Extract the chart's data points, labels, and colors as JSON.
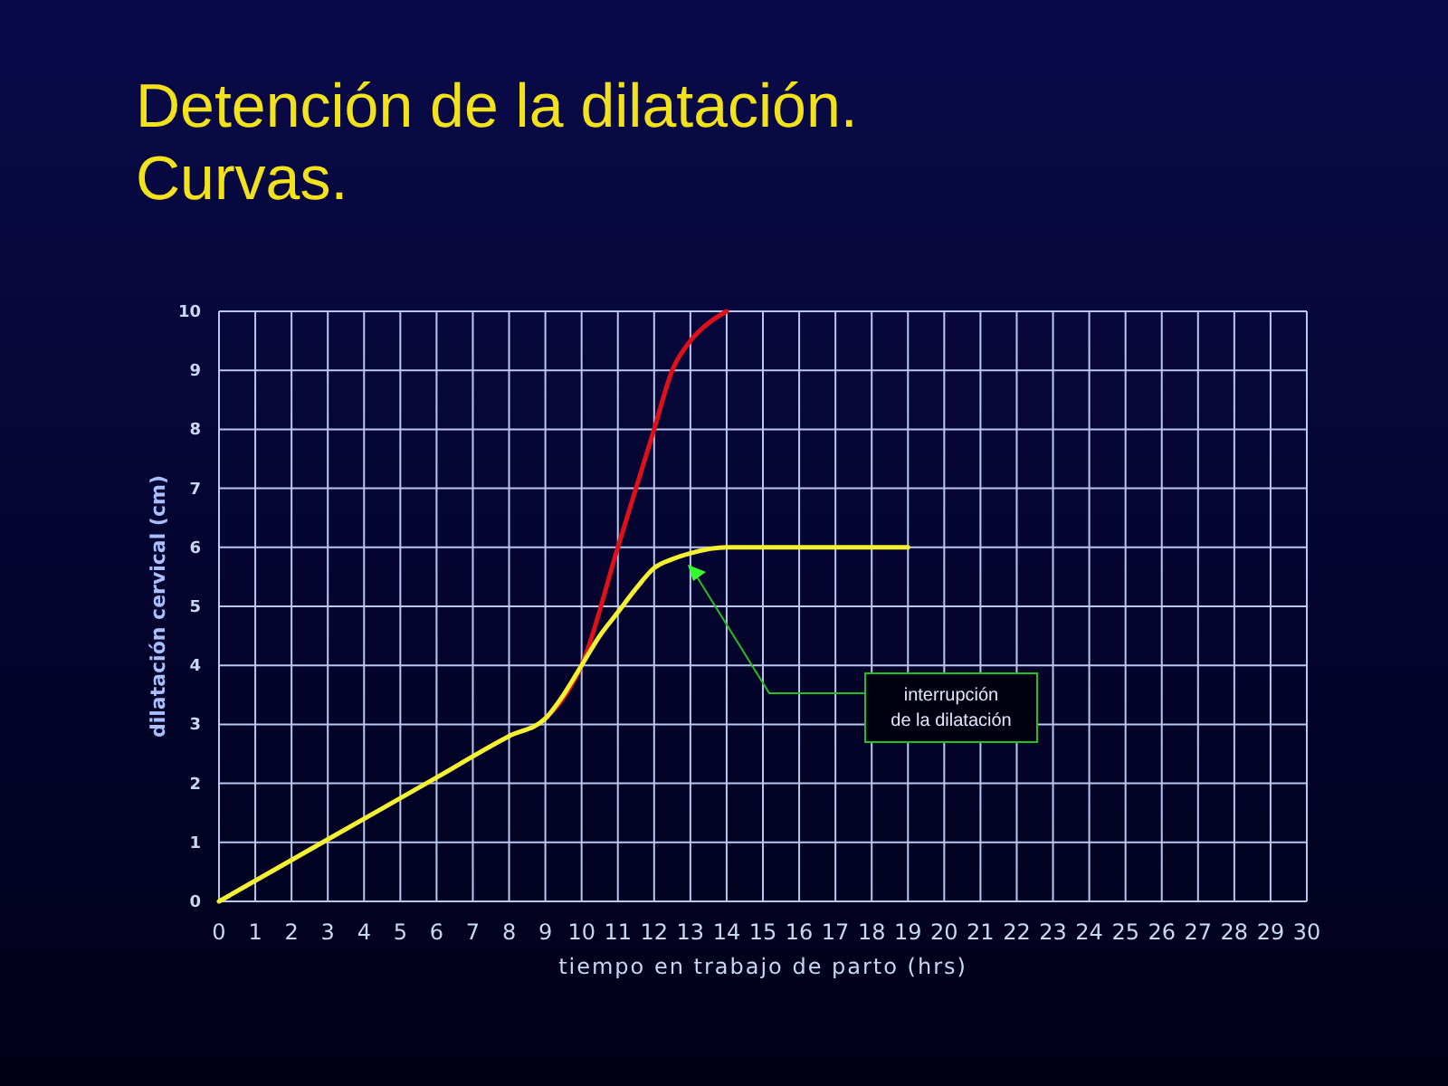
{
  "chart_data": {
    "type": "line",
    "title": "Detención de la dilatación.\nCurvas.",
    "xlabel": "tiempo en trabajo de parto (hrs)",
    "ylabel": "dilatación cervical (cm)",
    "xlim": [
      0,
      30
    ],
    "xticks": [
      0,
      1,
      2,
      3,
      4,
      5,
      6,
      7,
      8,
      9,
      10,
      11,
      12,
      13,
      14,
      15,
      16,
      17,
      18,
      19,
      20,
      21,
      22,
      23,
      24,
      25,
      26,
      27,
      28,
      29,
      30
    ],
    "ylim": [
      0,
      10
    ],
    "yticks": [
      0,
      1,
      2,
      3,
      4,
      5,
      6,
      7,
      8,
      9,
      10
    ],
    "grid": true,
    "marker": "none",
    "line_style": "solid",
    "series": [
      {
        "color": "#e0101a",
        "x": [
          9,
          9.5,
          10,
          11,
          12,
          12.5,
          13,
          13.5,
          14
        ],
        "values": [
          3.1,
          3.45,
          4,
          6,
          8,
          9,
          9.5,
          9.8,
          10
        ]
      },
      {
        "color": "#f5f032",
        "x": [
          0,
          3,
          6,
          8,
          9,
          9.5,
          10,
          10.5,
          11,
          11.5,
          12,
          12.5,
          13,
          14,
          19
        ],
        "values": [
          0,
          1.05,
          2.1,
          2.8,
          3.1,
          3.5,
          4,
          4.5,
          4.9,
          5.3,
          5.65,
          5.8,
          5.9,
          6,
          6
        ]
      }
    ],
    "annotations": [
      "interrupción\nde la dilatación"
    ]
  }
}
